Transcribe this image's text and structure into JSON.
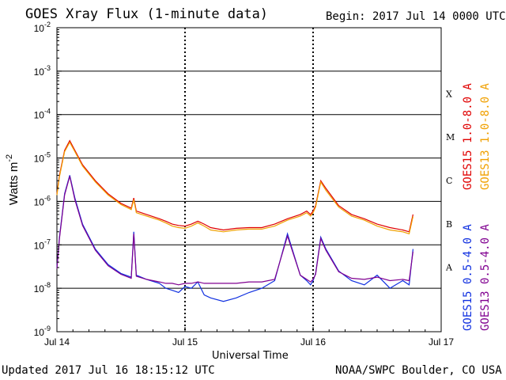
{
  "header": {
    "title": "GOES Xray Flux (1-minute data)",
    "begin": "Begin:  2017 Jul 14 0000 UTC"
  },
  "footer": {
    "updated": "Updated 2017 Jul 16 18:15:12 UTC",
    "credit": "NOAA/SWPC Boulder, CO USA"
  },
  "colors": {
    "goes15_long": "#e00000",
    "goes13_long": "#f0a000",
    "goes15_short": "#1030e0",
    "goes13_short": "#800090"
  },
  "chart_data": {
    "type": "line",
    "ylabel_base": "Watts m",
    "ylabel_exp": "-2",
    "xlabel": "Universal Time",
    "yscale": "log",
    "ylim": [
      1e-09,
      0.01
    ],
    "y_ticks": [
      {
        "exp": "-9",
        "value": 1e-09
      },
      {
        "exp": "-8",
        "value": 1e-08
      },
      {
        "exp": "-7",
        "value": 1e-07
      },
      {
        "exp": "-6",
        "value": 1e-06
      },
      {
        "exp": "-5",
        "value": 1e-05
      },
      {
        "exp": "-4",
        "value": 0.0001
      },
      {
        "exp": "-3",
        "value": 0.001
      },
      {
        "exp": "-2",
        "value": 0.01
      }
    ],
    "x_ticks": [
      "Jul 14",
      "Jul 15",
      "Jul 16",
      "Jul 17"
    ],
    "xlim_days": [
      0,
      3
    ],
    "flare_classes": [
      {
        "label": "A",
        "value": 1e-08
      },
      {
        "label": "B",
        "value": 1e-07
      },
      {
        "label": "C",
        "value": 1e-06
      },
      {
        "label": "M",
        "value": 1e-05
      },
      {
        "label": "X",
        "value": 0.0001
      }
    ],
    "series": [
      {
        "name": "GOES15 1.0-8.0 A",
        "color": "#e00000",
        "x": [
          0,
          0.02,
          0.06,
          0.1,
          0.14,
          0.2,
          0.3,
          0.4,
          0.5,
          0.58,
          0.6,
          0.62,
          0.7,
          0.8,
          0.85,
          0.9,
          0.95,
          1.0,
          1.05,
          1.1,
          1.15,
          1.2,
          1.3,
          1.4,
          1.5,
          1.6,
          1.7,
          1.8,
          1.9,
          1.95,
          1.98,
          2.0,
          2.02,
          2.06,
          2.1,
          2.2,
          2.3,
          2.4,
          2.5,
          2.6,
          2.7,
          2.75,
          2.78
        ],
        "y": [
          1.5e-06,
          4e-06,
          1.5e-05,
          2.5e-05,
          1.5e-05,
          7e-06,
          3e-06,
          1.5e-06,
          9e-07,
          7e-07,
          1.2e-06,
          6e-07,
          5e-07,
          4e-07,
          3.5e-07,
          3e-07,
          2.8e-07,
          2.7e-07,
          3e-07,
          3.5e-07,
          3e-07,
          2.5e-07,
          2.2e-07,
          2.4e-07,
          2.5e-07,
          2.5e-07,
          3e-07,
          4e-07,
          5e-07,
          6e-07,
          5e-07,
          6e-07,
          8e-07,
          3e-06,
          2e-06,
          8e-07,
          5e-07,
          4e-07,
          3e-07,
          2.5e-07,
          2.2e-07,
          2e-07,
          5e-07
        ]
      },
      {
        "name": "GOES13 1.0-8.0 A",
        "color": "#f0a000",
        "x": [
          0,
          0.02,
          0.06,
          0.1,
          0.14,
          0.2,
          0.3,
          0.4,
          0.5,
          0.58,
          0.6,
          0.62,
          0.7,
          0.8,
          0.85,
          0.9,
          0.95,
          1.0,
          1.05,
          1.1,
          1.15,
          1.2,
          1.3,
          1.4,
          1.5,
          1.6,
          1.7,
          1.8,
          1.9,
          1.95,
          1.98,
          2.0,
          2.02,
          2.06,
          2.1,
          2.2,
          2.3,
          2.4,
          2.5,
          2.6,
          2.7,
          2.75,
          2.78
        ],
        "y": [
          1.4e-06,
          3.7e-06,
          1.4e-05,
          2.3e-05,
          1.4e-05,
          6.5e-06,
          2.8e-06,
          1.4e-06,
          8.5e-07,
          6.5e-07,
          1.1e-06,
          5.5e-07,
          4.6e-07,
          3.7e-07,
          3.2e-07,
          2.7e-07,
          2.5e-07,
          2.4e-07,
          2.7e-07,
          3.2e-07,
          2.7e-07,
          2.2e-07,
          2e-07,
          2.2e-07,
          2.3e-07,
          2.3e-07,
          2.7e-07,
          3.7e-07,
          4.6e-07,
          5.5e-07,
          4.6e-07,
          5.5e-07,
          7.4e-07,
          2.8e-06,
          1.8e-06,
          7.4e-07,
          4.6e-07,
          3.7e-07,
          2.7e-07,
          2.2e-07,
          2e-07,
          1.8e-07,
          4.5e-07
        ]
      },
      {
        "name": "GOES15 0.5-4.0 A",
        "color": "#1030e0",
        "x": [
          0,
          0.02,
          0.06,
          0.1,
          0.14,
          0.2,
          0.3,
          0.4,
          0.5,
          0.58,
          0.6,
          0.62,
          0.7,
          0.8,
          0.85,
          0.9,
          0.95,
          1.0,
          1.05,
          1.1,
          1.15,
          1.2,
          1.3,
          1.4,
          1.5,
          1.6,
          1.7,
          1.8,
          1.9,
          1.95,
          1.98,
          2.0,
          2.02,
          2.06,
          2.1,
          2.2,
          2.3,
          2.4,
          2.5,
          2.6,
          2.7,
          2.75,
          2.78
        ],
        "y": [
          3e-08,
          1.5e-07,
          1.5e-06,
          4e-06,
          1.2e-06,
          3e-07,
          8e-08,
          3.5e-08,
          2.2e-08,
          1.8e-08,
          2e-07,
          2e-08,
          1.6e-08,
          1.3e-08,
          1e-08,
          9e-09,
          8e-09,
          1.1e-08,
          1e-08,
          1.4e-08,
          7e-09,
          6e-09,
          5e-09,
          6e-09,
          8e-09,
          1e-08,
          1.5e-08,
          1.8e-07,
          2e-08,
          1.5e-08,
          1.2e-08,
          1.5e-08,
          2.2e-08,
          1.5e-07,
          8e-08,
          2.5e-08,
          1.5e-08,
          1.2e-08,
          2e-08,
          1e-08,
          1.5e-08,
          1.2e-08,
          8e-08
        ]
      },
      {
        "name": "GOES13 0.5-4.0 A",
        "color": "#800090",
        "x": [
          0,
          0.02,
          0.06,
          0.1,
          0.14,
          0.2,
          0.3,
          0.4,
          0.5,
          0.58,
          0.6,
          0.62,
          0.7,
          0.8,
          0.85,
          0.9,
          0.95,
          1.0,
          1.05,
          1.1,
          1.15,
          1.2,
          1.3,
          1.4,
          1.5,
          1.6,
          1.7,
          1.8,
          1.9,
          1.95,
          1.98,
          2.0,
          2.02,
          2.06,
          2.1,
          2.2,
          2.3,
          2.4,
          2.5,
          2.6,
          2.7,
          2.75,
          2.78
        ],
        "y": [
          2.8e-08,
          1.4e-07,
          1.4e-06,
          3.8e-06,
          1.1e-06,
          2.8e-07,
          7.5e-08,
          3.3e-08,
          2.1e-08,
          1.7e-08,
          1.8e-07,
          1.9e-08,
          1.6e-08,
          1.4e-08,
          1.3e-08,
          1.3e-08,
          1.2e-08,
          1.3e-08,
          1.3e-08,
          1.4e-08,
          1.3e-08,
          1.3e-08,
          1.3e-08,
          1.3e-08,
          1.4e-08,
          1.4e-08,
          1.6e-08,
          1.6e-07,
          2e-08,
          1.6e-08,
          1.4e-08,
          1.6e-08,
          2.1e-08,
          1.4e-07,
          7.5e-08,
          2.4e-08,
          1.7e-08,
          1.6e-08,
          1.8e-08,
          1.5e-08,
          1.6e-08,
          1.5e-08,
          7e-08
        ]
      }
    ]
  }
}
